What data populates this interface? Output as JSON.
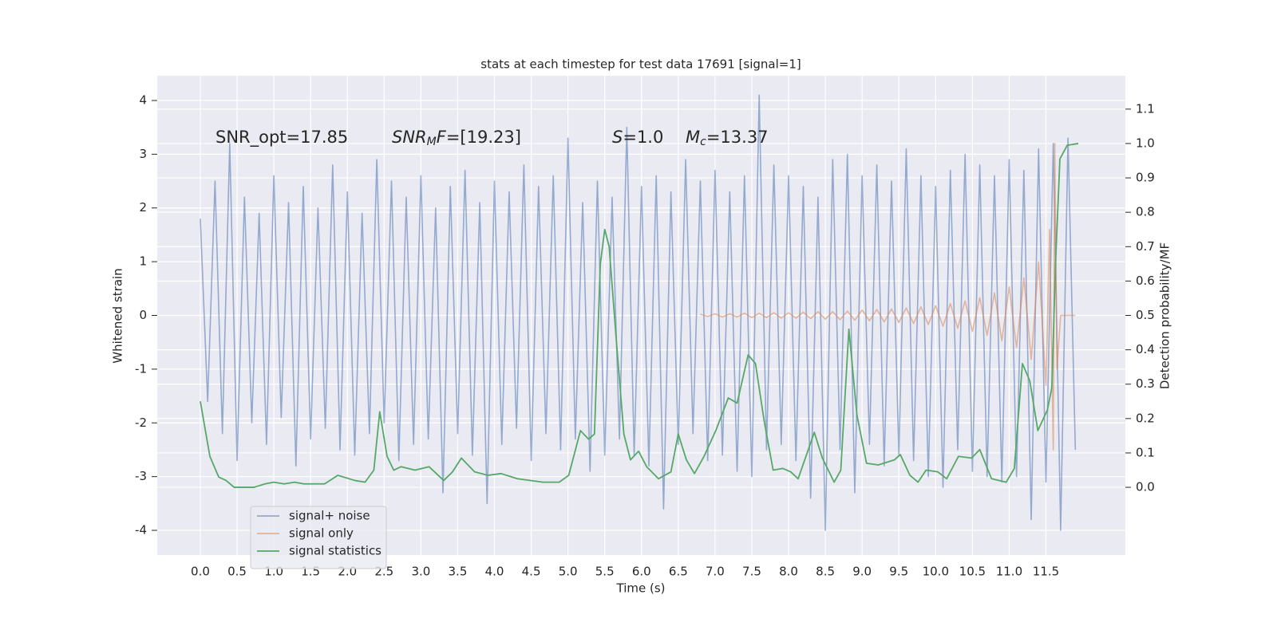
{
  "chart_data": {
    "type": "line",
    "title": "stats at each timestep for test data 17691 [signal=1]",
    "xlabel": "Time (s)",
    "ylabel": "Whitened strain",
    "y2label": "Detection probability/MF",
    "annotations": [
      {
        "parts": [
          "SNR_opt=17.85"
        ]
      },
      {
        "parts": [
          "SNR",
          "M",
          "F",
          "=[19.23]"
        ]
      },
      {
        "parts": [
          "S",
          "=1.0"
        ]
      },
      {
        "parts": [
          "M",
          "c",
          "=13.37"
        ]
      }
    ],
    "xlim": [
      -0.586,
      12.58
    ],
    "ylim": [
      -4.46,
      4.46
    ],
    "y2lim": [
      -0.197,
      1.197
    ],
    "xticks": [
      {
        "value": 0,
        "label": "0.0"
      },
      0.5,
      {
        "value": 1,
        "label": "1.0"
      },
      1.5,
      {
        "value": 2,
        "label": "2.0"
      },
      2.5,
      {
        "value": 3,
        "label": "3.0"
      },
      3.5,
      {
        "value": 4,
        "label": "4.0"
      },
      4.5,
      {
        "value": 5,
        "label": "5.0"
      },
      5.5,
      {
        "value": 6,
        "label": "6.0"
      },
      6.5,
      {
        "value": 7,
        "label": "7.0"
      },
      7.5,
      {
        "value": 8,
        "label": "8.0"
      },
      8.5,
      {
        "value": 9,
        "label": "9.0"
      },
      9.5,
      {
        "value": 10,
        "label": "10.0"
      },
      10.5,
      {
        "value": 11,
        "label": "11.0"
      },
      11.5
    ],
    "yticks": [
      -4,
      -3,
      -2,
      -1,
      0,
      1,
      2,
      3,
      4
    ],
    "y2ticks": [
      {
        "value": 0,
        "label": "0.0"
      },
      0.1,
      0.2,
      0.3,
      0.4,
      0.5,
      0.6,
      0.7,
      0.8,
      0.9,
      {
        "value": 1,
        "label": "1.0"
      },
      1.1
    ],
    "grid": true,
    "legend": "lower left",
    "series": [
      {
        "name": "signal+ noise",
        "color": "#4c72b0",
        "x": [
          0,
          0.1,
          0.2,
          0.3,
          0.4,
          0.5,
          0.6,
          0.7,
          0.8,
          0.9,
          1,
          1.1,
          1.2,
          1.3,
          1.4,
          1.5,
          1.6,
          1.7,
          1.8,
          1.9,
          2,
          2.1,
          2.2,
          2.3,
          2.4,
          2.5,
          2.6,
          2.7,
          2.8,
          2.9,
          3,
          3.1,
          3.2,
          3.3,
          3.4,
          3.5,
          3.6,
          3.7,
          3.8,
          3.9,
          4,
          4.1,
          4.2,
          4.3,
          4.4,
          4.5,
          4.6,
          4.7,
          4.8,
          4.9,
          5,
          5.1,
          5.2,
          5.3,
          5.4,
          5.5,
          5.6,
          5.7,
          5.8,
          5.9,
          6,
          6.1,
          6.2,
          6.3,
          6.4,
          6.5,
          6.6,
          6.7,
          6.8,
          6.9,
          7,
          7.1,
          7.2,
          7.3,
          7.4,
          7.5,
          7.6,
          7.7,
          7.8,
          7.9,
          8,
          8.1,
          8.2,
          8.3,
          8.4,
          8.5,
          8.6,
          8.7,
          8.8,
          8.9,
          9,
          9.1,
          9.2,
          9.3,
          9.4,
          9.5,
          9.6,
          9.7,
          9.8,
          9.9,
          10,
          10.1,
          10.2,
          10.3,
          10.4,
          10.5,
          10.6,
          10.7,
          10.8,
          10.9,
          11,
          11.1,
          11.2,
          11.3,
          11.4,
          11.5,
          11.6,
          11.7,
          11.8,
          11.9
        ],
        "values": [
          1.8,
          -1.6,
          2.5,
          -2.2,
          3.2,
          -2.7,
          2.2,
          -2.0,
          1.9,
          -2.4,
          2.6,
          -1.9,
          2.1,
          -2.8,
          2.4,
          -2.3,
          2.0,
          -2.1,
          2.8,
          -2.5,
          2.3,
          -2.6,
          1.9,
          -2.2,
          2.9,
          -2.0,
          2.5,
          -2.7,
          2.2,
          -2.4,
          2.6,
          -2.3,
          2.0,
          -3.3,
          2.4,
          -2.2,
          2.7,
          -2.6,
          2.1,
          -3.5,
          2.5,
          -2.4,
          2.3,
          -2.1,
          2.8,
          -2.7,
          2.4,
          -2.2,
          2.6,
          -2.5,
          3.3,
          -2.3,
          2.1,
          -2.9,
          2.5,
          -2.6,
          2.2,
          -2.3,
          3.5,
          -2.6,
          2.4,
          -2.8,
          2.6,
          -3.6,
          2.3,
          -2.4,
          2.9,
          -2.2,
          2.5,
          -2.7,
          2.7,
          -2.6,
          2.3,
          -2.9,
          2.6,
          -3.0,
          4.1,
          -2.5,
          2.8,
          -2.4,
          2.6,
          -2.7,
          2.4,
          -3.4,
          2.2,
          -4.0,
          2.9,
          -2.5,
          3.0,
          -3.3,
          2.6,
          -2.4,
          2.8,
          -2.8,
          2.5,
          -2.6,
          3.1,
          -2.7,
          2.6,
          -3.0,
          2.4,
          -3.2,
          2.7,
          -2.5,
          3.0,
          -2.9,
          2.8,
          -3.0,
          2.6,
          -3.1,
          2.9,
          -3.0,
          2.7,
          -3.8,
          3.1,
          -3.1,
          3.2,
          -4.0,
          3.3,
          -2.5
        ]
      },
      {
        "name": "signal only",
        "color": "#dd8452",
        "x": [
          6.8,
          6.9,
          7,
          7.1,
          7.2,
          7.3,
          7.4,
          7.5,
          7.6,
          7.7,
          7.8,
          7.9,
          8,
          8.1,
          8.2,
          8.3,
          8.4,
          8.5,
          8.6,
          8.7,
          8.8,
          8.9,
          9,
          9.1,
          9.2,
          9.3,
          9.4,
          9.5,
          9.6,
          9.7,
          9.8,
          9.9,
          10,
          10.1,
          10.2,
          10.3,
          10.4,
          10.5,
          10.6,
          10.7,
          10.8,
          10.9,
          11,
          11.1,
          11.2,
          11.3,
          11.4,
          11.5,
          11.55,
          11.6,
          11.62,
          11.65,
          11.7,
          11.8,
          11.9
        ],
        "values": [
          0.02,
          -0.02,
          0.03,
          -0.03,
          0.03,
          -0.03,
          0.04,
          -0.04,
          0.04,
          -0.04,
          0.05,
          -0.05,
          0.05,
          -0.05,
          0.06,
          -0.06,
          0.07,
          -0.07,
          0.07,
          -0.08,
          0.08,
          -0.09,
          0.1,
          -0.1,
          0.11,
          -0.12,
          0.12,
          -0.13,
          0.14,
          -0.15,
          0.16,
          -0.17,
          0.18,
          -0.2,
          0.22,
          -0.24,
          0.27,
          -0.3,
          0.33,
          -0.37,
          0.42,
          -0.47,
          0.53,
          -0.6,
          0.7,
          -0.82,
          1.0,
          -1.3,
          1.6,
          -2.5,
          3.2,
          -1.0,
          0,
          0,
          0
        ]
      },
      {
        "name": "signal statistics",
        "color": "#55a868",
        "axis": "y2",
        "x": [
          0,
          0.13,
          0.25,
          0.35,
          0.46,
          0.6,
          0.73,
          0.88,
          1,
          1.14,
          1.28,
          1.41,
          1.69,
          1.87,
          2.1,
          2.24,
          2.36,
          2.44,
          2.54,
          2.63,
          2.73,
          2.92,
          3.11,
          3.31,
          3.43,
          3.55,
          3.73,
          3.91,
          4.09,
          4.31,
          4.66,
          4.88,
          5.01,
          5.17,
          5.28,
          5.36,
          5.44,
          5.5,
          5.56,
          5.66,
          5.76,
          5.85,
          5.96,
          6.07,
          6.23,
          6.4,
          6.5,
          6.61,
          6.72,
          6.85,
          7.01,
          7.18,
          7.3,
          7.45,
          7.55,
          7.67,
          7.79,
          7.92,
          8.03,
          8.13,
          8.35,
          8.46,
          8.62,
          8.71,
          8.82,
          8.93,
          9.06,
          9.22,
          9.44,
          9.52,
          9.65,
          9.76,
          9.87,
          10.03,
          10.15,
          10.31,
          10.49,
          10.6,
          10.76,
          10.96,
          11.07,
          11.18,
          11.28,
          11.39,
          11.52,
          11.58,
          11.63,
          11.69,
          11.79,
          11.94
        ],
        "values": [
          0.25,
          0.09,
          0.03,
          0.02,
          0,
          0,
          0,
          0.01,
          0.015,
          0.01,
          0.015,
          0.01,
          0.01,
          0.035,
          0.02,
          0.015,
          0.05,
          0.22,
          0.09,
          0.05,
          0.06,
          0.05,
          0.06,
          0.02,
          0.045,
          0.085,
          0.045,
          0.035,
          0.04,
          0.025,
          0.015,
          0.015,
          0.035,
          0.165,
          0.14,
          0.155,
          0.65,
          0.75,
          0.7,
          0.42,
          0.155,
          0.08,
          0.105,
          0.06,
          0.025,
          0.045,
          0.155,
          0.08,
          0.04,
          0.09,
          0.165,
          0.26,
          0.245,
          0.385,
          0.36,
          0.19,
          0.05,
          0.055,
          0.045,
          0.025,
          0.16,
          0.085,
          0.015,
          0.05,
          0.46,
          0.21,
          0.07,
          0.065,
          0.08,
          0.095,
          0.035,
          0.015,
          0.05,
          0.045,
          0.025,
          0.09,
          0.085,
          0.11,
          0.025,
          0.015,
          0.055,
          0.36,
          0.31,
          0.165,
          0.225,
          0.29,
          0.65,
          0.955,
          0.995,
          1.0
        ]
      }
    ]
  }
}
